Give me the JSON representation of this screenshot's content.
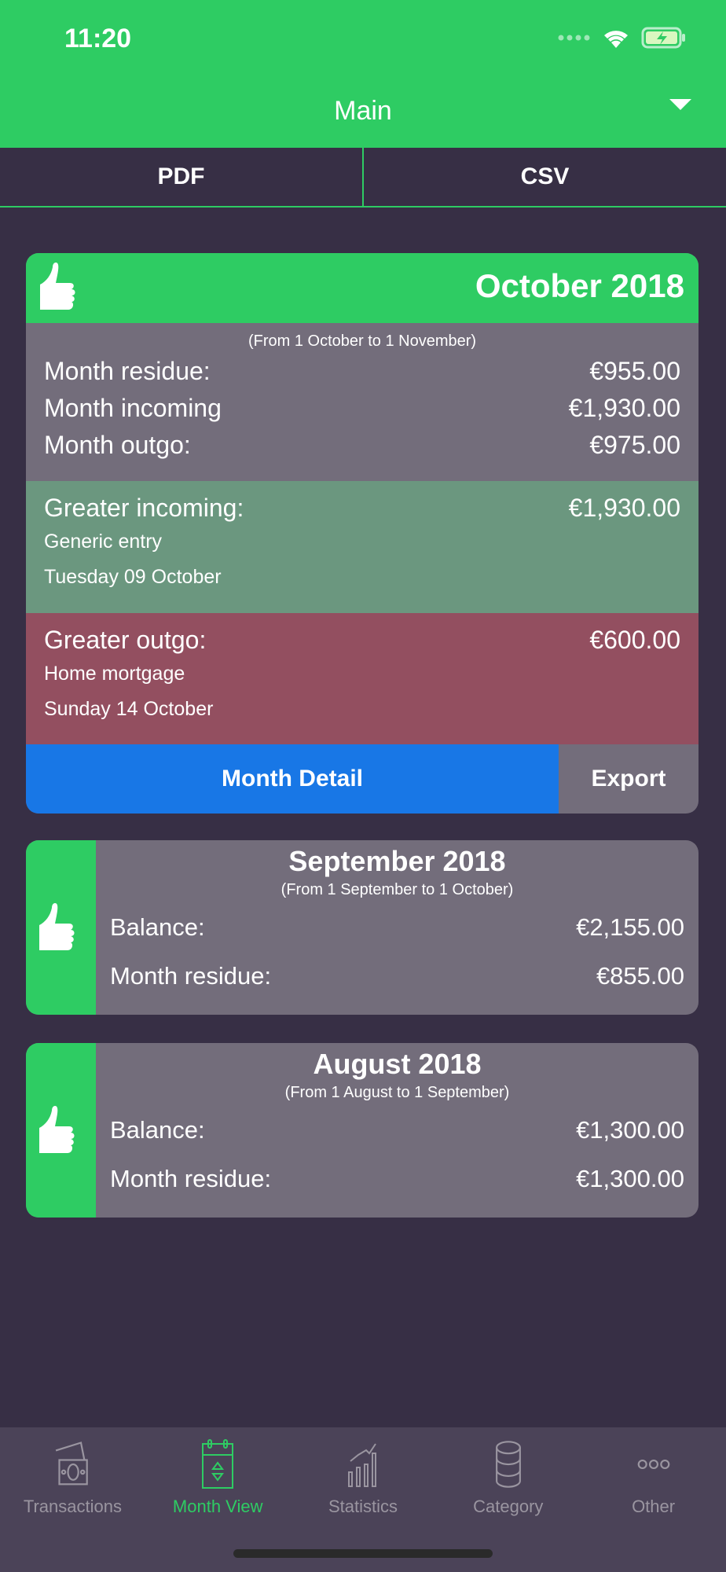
{
  "status": {
    "time": "11:20"
  },
  "header": {
    "title": "Main"
  },
  "export_tabs": [
    "PDF",
    "CSV"
  ],
  "colors": {
    "accent": "#2ecc63",
    "background": "#372f45",
    "card": "#736d7b",
    "incoming": "#6b977f",
    "outgo": "#934f60",
    "detail_button": "#1877e6"
  },
  "current_month": {
    "title": "October 2018",
    "range": "(From 1 October to 1 November)",
    "rows": [
      {
        "label": "Month residue:",
        "value": "€955.00"
      },
      {
        "label": "Month incoming",
        "value": "€1,930.00"
      },
      {
        "label": "Month outgo:",
        "value": "€975.00"
      }
    ],
    "greater_incoming": {
      "label": "Greater incoming:",
      "value": "€1,930.00",
      "name": "Generic entry",
      "date": "Tuesday 09 October"
    },
    "greater_outgo": {
      "label": "Greater outgo:",
      "value": "€600.00",
      "name": "Home mortgage",
      "date": "Sunday 14 October"
    },
    "detail_label": "Month Detail",
    "export_label": "Export"
  },
  "past_months": [
    {
      "title": "September 2018",
      "range": "(From 1 September to 1 October)",
      "balance_label": "Balance:",
      "balance": "€2,155.00",
      "residue_label": "Month residue:",
      "residue": "€855.00"
    },
    {
      "title": "August 2018",
      "range": "(From 1 August to 1 September)",
      "balance_label": "Balance:",
      "balance": "€1,300.00",
      "residue_label": "Month residue:",
      "residue": "€1,300.00"
    }
  ],
  "tabbar": [
    {
      "label": "Transactions",
      "icon": "money-icon"
    },
    {
      "label": "Month View",
      "icon": "calendar-icon",
      "active": true
    },
    {
      "label": "Statistics",
      "icon": "chart-icon"
    },
    {
      "label": "Category",
      "icon": "database-icon"
    },
    {
      "label": "Other",
      "icon": "more-icon"
    }
  ]
}
